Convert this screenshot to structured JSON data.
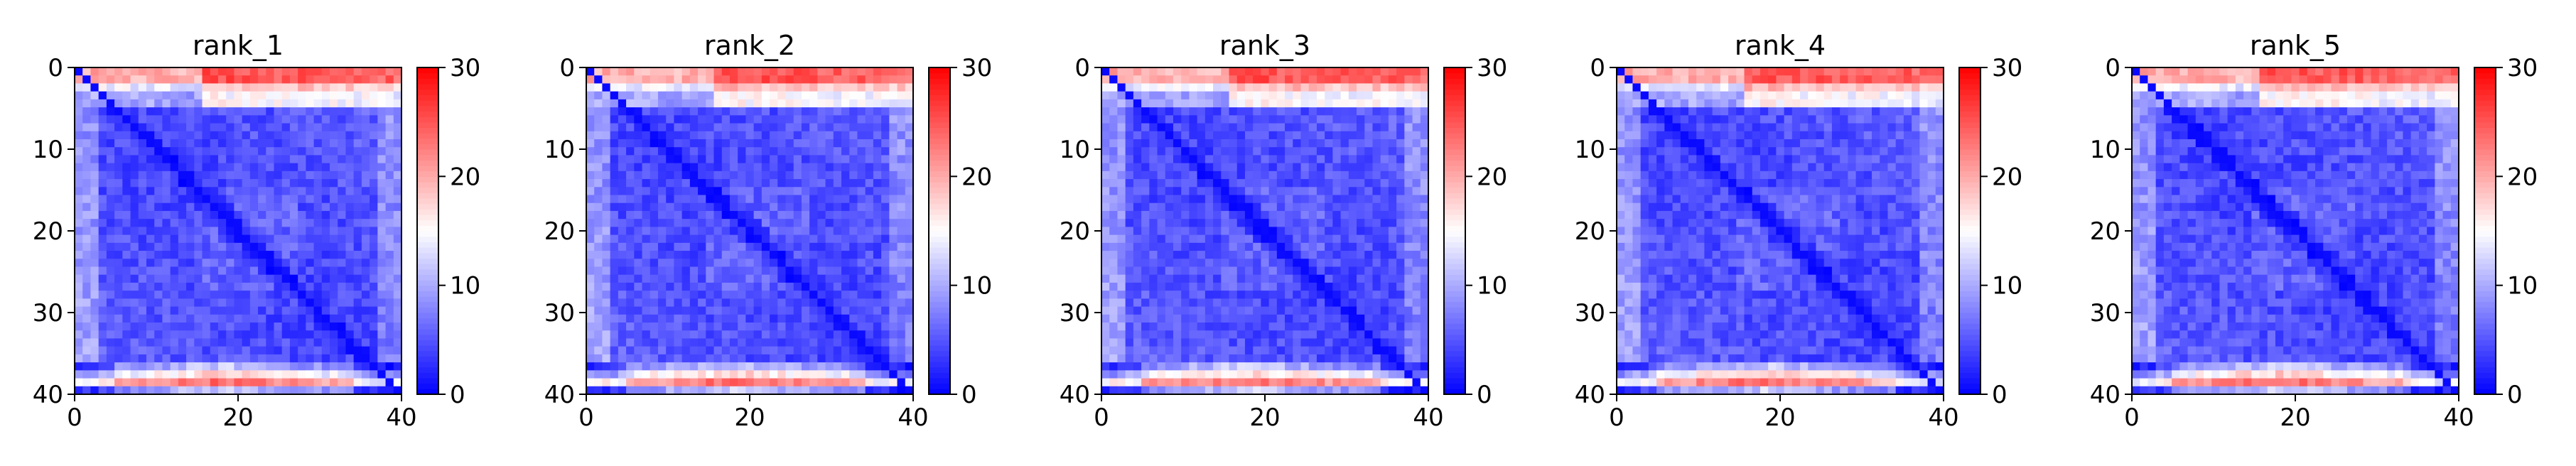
{
  "chart_data": [
    {
      "type": "heatmap",
      "title": "rank_1",
      "n": 41,
      "x_ticks": [
        0,
        20,
        40
      ],
      "y_ticks": [
        0,
        10,
        20,
        30,
        40
      ],
      "colorbar": {
        "min": 0,
        "max": 30,
        "ticks": [
          0,
          10,
          20,
          30
        ],
        "colormap": "bwr"
      },
      "seed": 1
    },
    {
      "type": "heatmap",
      "title": "rank_2",
      "n": 41,
      "x_ticks": [
        0,
        20,
        40
      ],
      "y_ticks": [
        0,
        10,
        20,
        30,
        40
      ],
      "colorbar": {
        "min": 0,
        "max": 30,
        "ticks": [
          0,
          10,
          20,
          30
        ],
        "colormap": "bwr"
      },
      "seed": 2
    },
    {
      "type": "heatmap",
      "title": "rank_3",
      "n": 41,
      "x_ticks": [
        0,
        20,
        40
      ],
      "y_ticks": [
        0,
        10,
        20,
        30,
        40
      ],
      "colorbar": {
        "min": 0,
        "max": 30,
        "ticks": [
          0,
          10,
          20,
          30
        ],
        "colormap": "bwr"
      },
      "seed": 3
    },
    {
      "type": "heatmap",
      "title": "rank_4",
      "n": 41,
      "x_ticks": [
        0,
        20,
        40
      ],
      "y_ticks": [
        0,
        10,
        20,
        30,
        40
      ],
      "colorbar": {
        "min": 0,
        "max": 30,
        "ticks": [
          0,
          10,
          20,
          30
        ],
        "colormap": "bwr"
      },
      "seed": 4
    },
    {
      "type": "heatmap",
      "title": "rank_5",
      "n": 41,
      "x_ticks": [
        0,
        20,
        40
      ],
      "y_ticks": [
        0,
        10,
        20,
        30,
        40
      ],
      "colorbar": {
        "min": 0,
        "max": 30,
        "ticks": [
          0,
          10,
          20,
          30
        ],
        "colormap": "bwr"
      },
      "seed": 5
    }
  ],
  "colors": {
    "low": "#0000ff",
    "mid": "#ffffff",
    "high": "#ff0000"
  }
}
